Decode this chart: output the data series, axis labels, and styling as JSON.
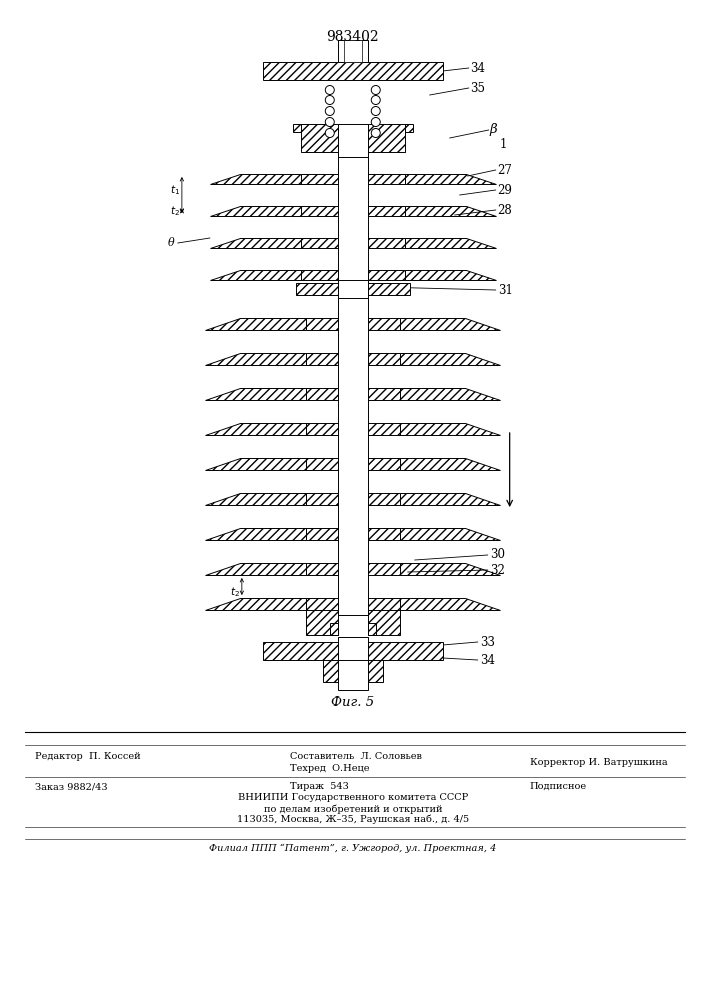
{
  "patent_number": "983402",
  "fig_label": "Фиг. 5",
  "background_color": "#ffffff",
  "line_color": "#000000",
  "footer": {
    "editor": "Редактор  П. Коссей",
    "composer": "Составитель  Л. Соловьев",
    "techred": "Техред  О.Неце",
    "corrector": "Корректор И. Ватрушкина",
    "order": "Заказ 9882/43",
    "tirazh": "Тираж  543",
    "podpisnoe": "Подписное",
    "vniipи": "ВНИИПИ Государственного комитета СССР",
    "po_delam": "по делам изобретений и открытий",
    "address": "113035, Москва, Ж–35, Раушская наб., д. 4/5",
    "filial": "Филиал ППП “Патент”, г. Ужгород, ул. Проектная, 4"
  }
}
